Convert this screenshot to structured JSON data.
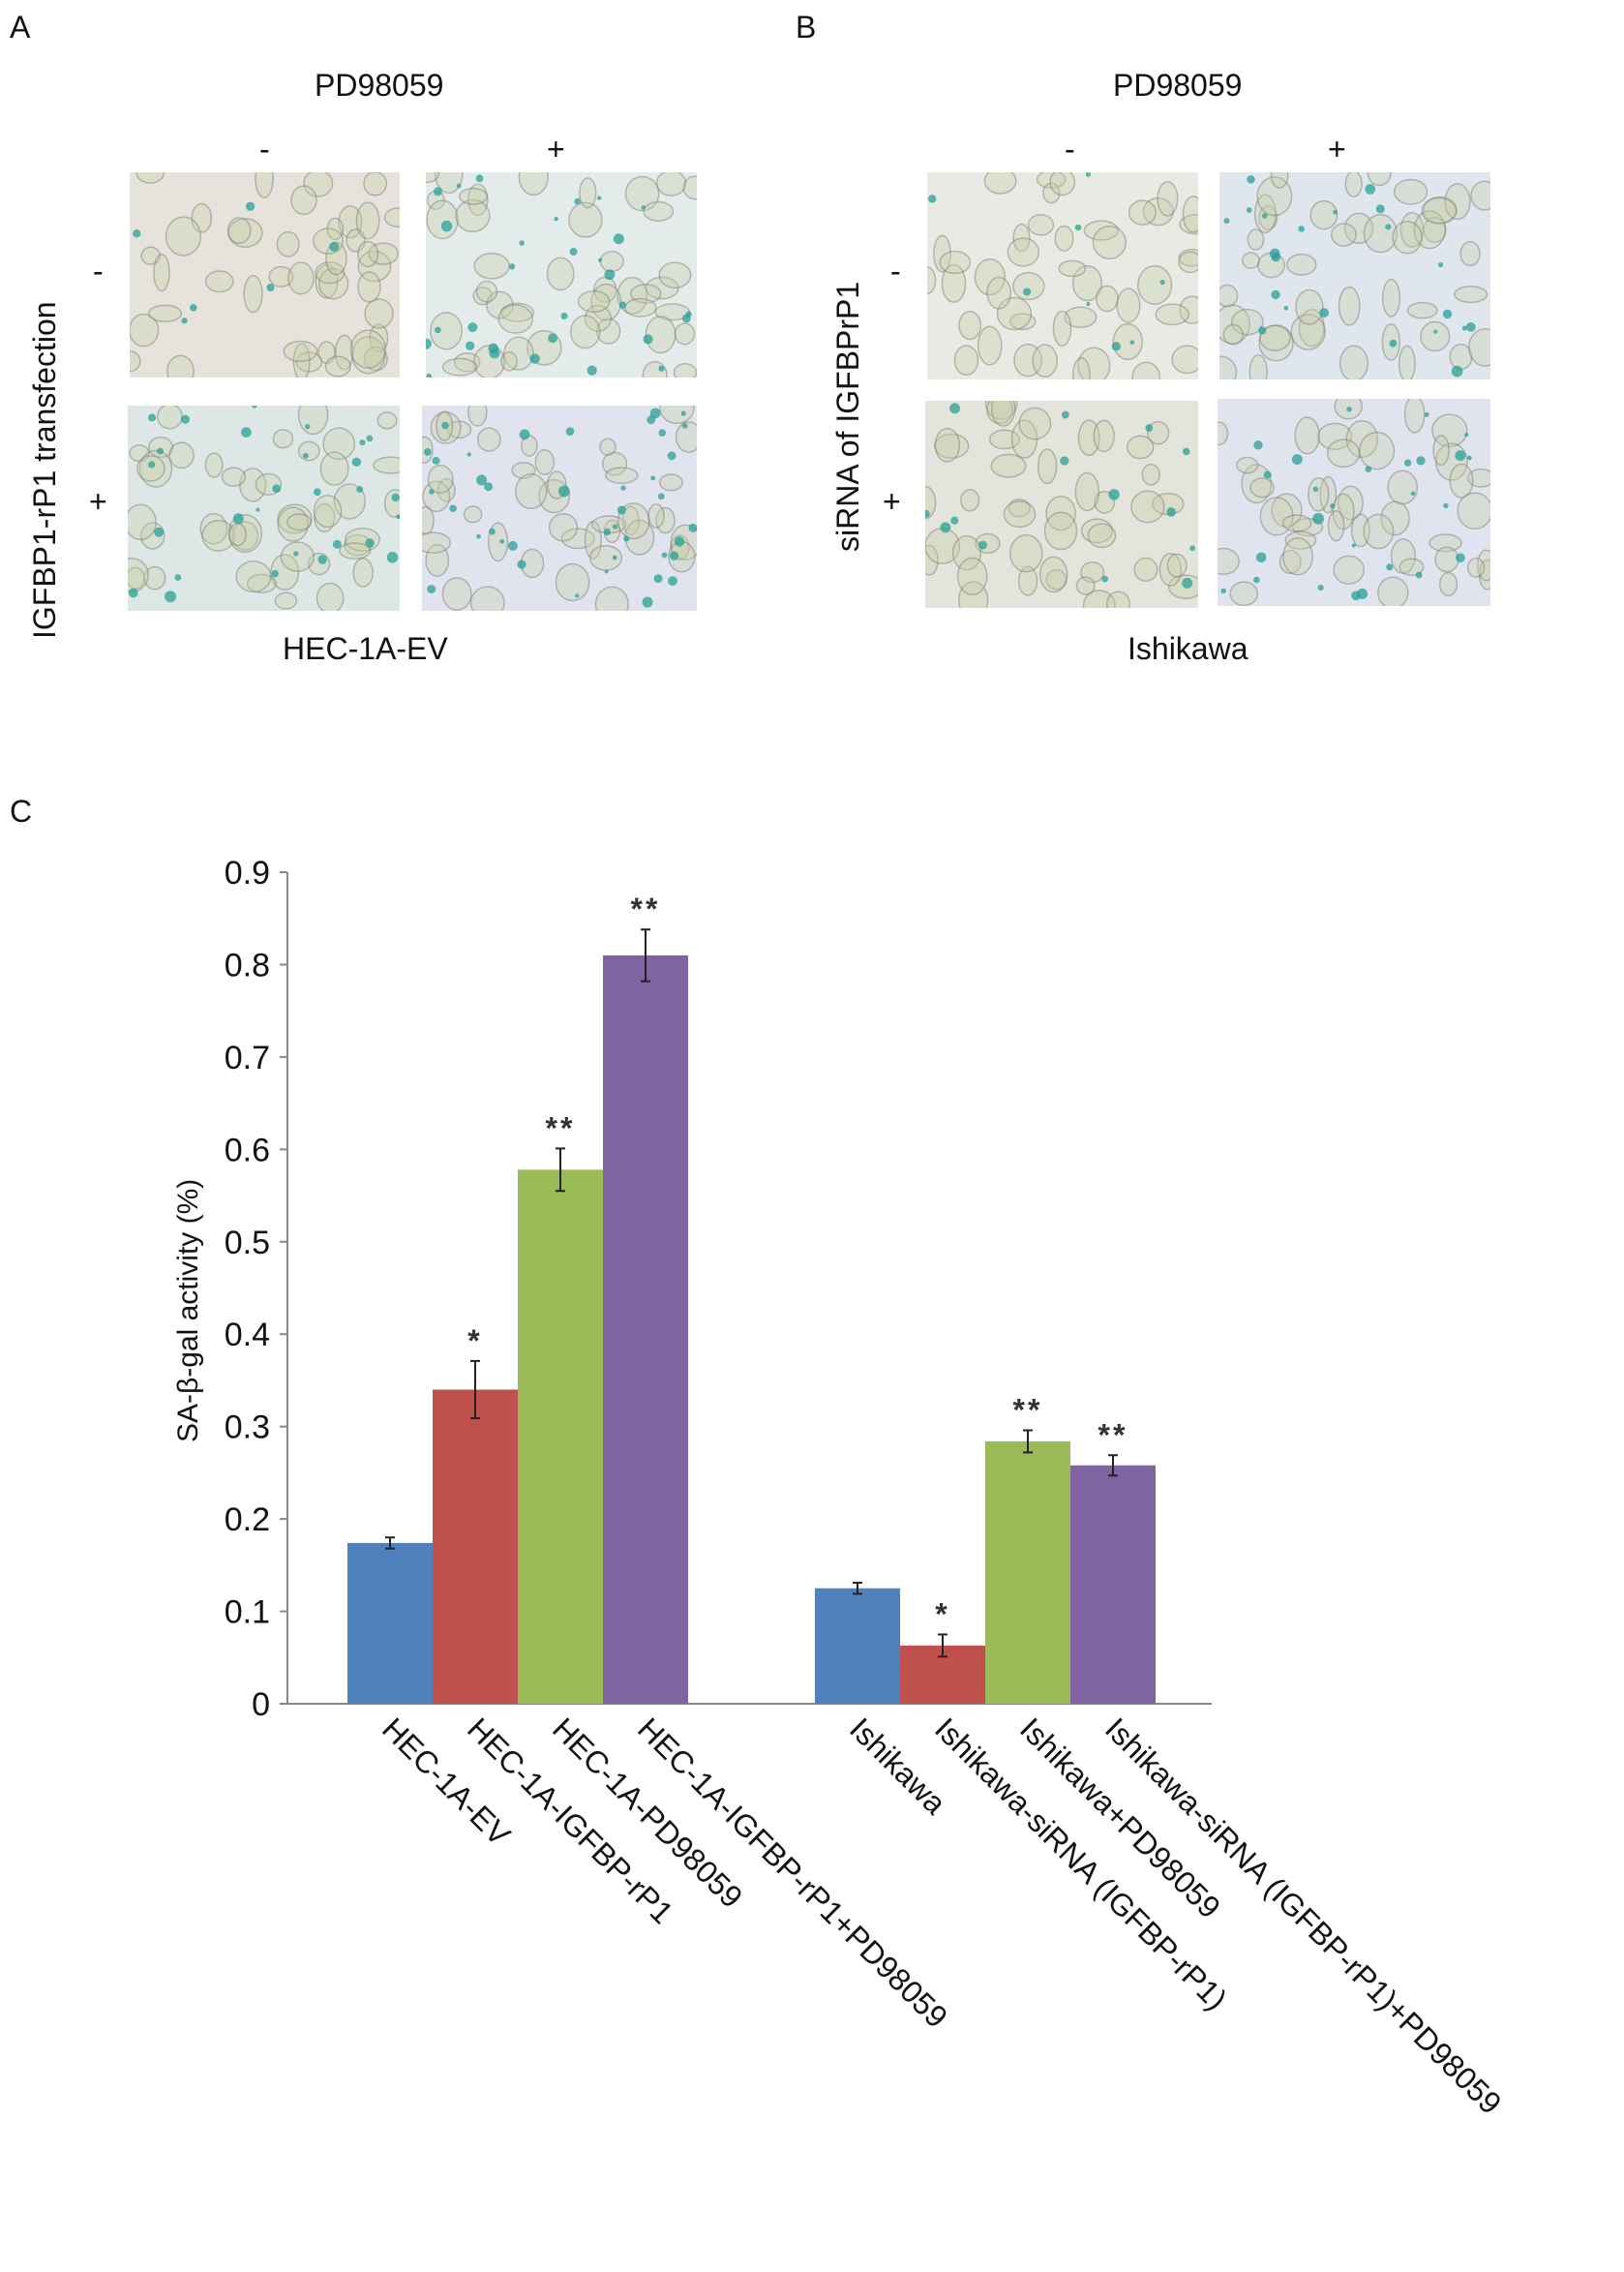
{
  "panels": {
    "A": {
      "letter": "A",
      "treatment": "PD98059",
      "col_signs": [
        "-",
        "+"
      ],
      "row_signs": [
        "-",
        "+"
      ],
      "row_label": "IGFBP1-rP1 transfection",
      "cell_line": "HEC-1A-EV",
      "image_tints": [
        "#e6e3dc",
        "#e4eceb",
        "#dde8e6",
        "#e1e3ee"
      ]
    },
    "B": {
      "letter": "B",
      "treatment": "PD98059",
      "col_signs": [
        "-",
        "+"
      ],
      "row_signs": [
        "-",
        "+"
      ],
      "row_label": "siRNA of IGFBPrP1",
      "cell_line": "Ishikawa",
      "image_tints": [
        "#e7ebe4",
        "#dfe6ee",
        "#e3e4dc",
        "#e0e4ef"
      ]
    },
    "C": {
      "letter": "C"
    }
  },
  "chart_data": {
    "type": "bar",
    "title": "",
    "xlabel": "",
    "ylabel": "SA-β-gal activity (%)",
    "ylim": [
      0,
      0.9
    ],
    "yticks": [
      "0",
      "0.1",
      "0.2",
      "0.3",
      "0.4",
      "0.5",
      "0.6",
      "0.7",
      "0.8",
      "0.9"
    ],
    "grid": false,
    "groups": [
      {
        "categories": [
          "HEC-1A-EV",
          "HEC-1A-IGFBP-rP1",
          "HEC-1A-PD98059",
          "HEC-1A-IGFBP-rP1+PD98059"
        ],
        "values": [
          0.174,
          0.34,
          0.578,
          0.81
        ],
        "errors": [
          0.006,
          0.031,
          0.023,
          0.028
        ],
        "significance": [
          "",
          "*",
          "**",
          "**"
        ]
      },
      {
        "categories": [
          "Ishikawa",
          "Ishikawa-siRNA (IGFBP-rP1)",
          "Ishikawa+PD98059",
          "Ishikawa-siRNA (IGFBP-rP1)+PD98059"
        ],
        "values": [
          0.125,
          0.063,
          0.284,
          0.258
        ],
        "errors": [
          0.006,
          0.012,
          0.012,
          0.011
        ],
        "significance": [
          "",
          "*",
          "**",
          "**"
        ]
      }
    ],
    "colors": [
      "#4f81bd",
      "#c0504d",
      "#9bbb59",
      "#8064a2"
    ]
  }
}
